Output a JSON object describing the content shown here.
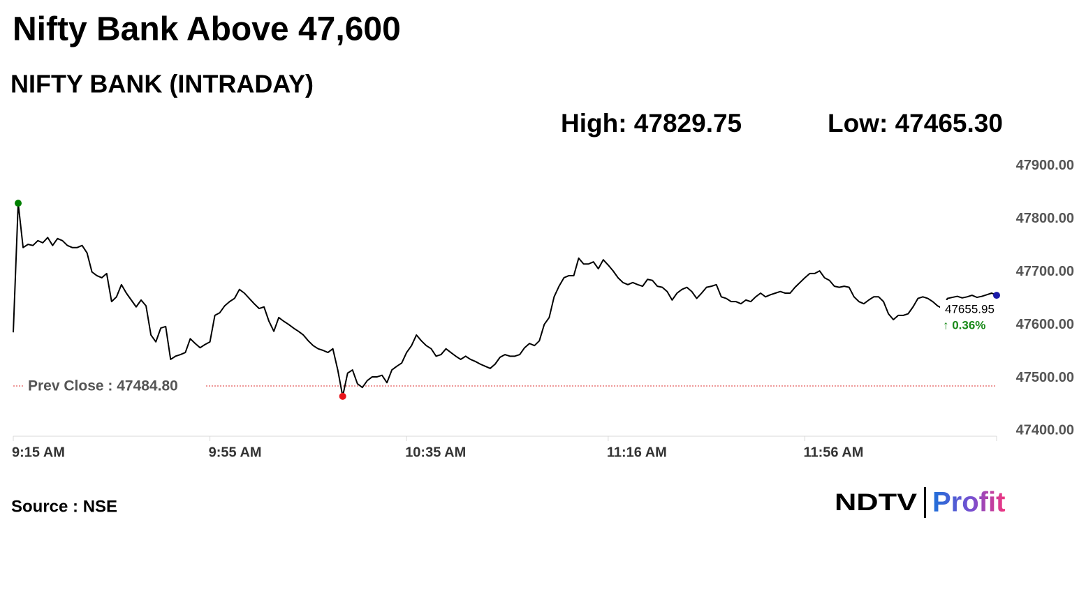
{
  "chart_data": {
    "type": "line",
    "title": "Nifty Bank Above 47,600",
    "subtitle": "NIFTY BANK (INTRADAY)",
    "high": {
      "value": 47829.75,
      "label": "High: 47829.75"
    },
    "low": {
      "value": 47465.3,
      "label": "Low: 47465.30"
    },
    "prev_close": {
      "value": 47484.8,
      "label": "Prev Close : 47484.80"
    },
    "last_price": 47655.95,
    "change_pct": {
      "value": 0.36,
      "label": "↑ 0.36%"
    },
    "source": "Source : NSE",
    "logo": {
      "brand": "NDTV",
      "product": "Profit"
    },
    "color": "#000000",
    "high_color": "#008000",
    "low_color": "#e8141b",
    "last_color": "#1a1aa8",
    "ylim": [
      47390,
      47930
    ],
    "yticks": [
      {
        "value": 47400,
        "label": "47400.00"
      },
      {
        "value": 47500,
        "label": "47500.00"
      },
      {
        "value": 47600,
        "label": "47600.00"
      },
      {
        "value": 47700,
        "label": "47700.00"
      },
      {
        "value": 47800,
        "label": "47800.00"
      },
      {
        "value": 47900,
        "label": "47900.00"
      }
    ],
    "categories": [
      "9:15 AM",
      null,
      null,
      null,
      null,
      null,
      null,
      null,
      null,
      null,
      null,
      null,
      null,
      null,
      null,
      null,
      null,
      null,
      null,
      null,
      null,
      null,
      null,
      null,
      null,
      null,
      null,
      null,
      null,
      null,
      null,
      null,
      null,
      null,
      null,
      null,
      null,
      null,
      null,
      null,
      "9:55 AM",
      null,
      null,
      null,
      null,
      null,
      null,
      null,
      null,
      null,
      null,
      null,
      null,
      null,
      null,
      null,
      null,
      null,
      null,
      null,
      null,
      null,
      null,
      null,
      null,
      null,
      null,
      null,
      null,
      null,
      null,
      null,
      null,
      null,
      null,
      null,
      null,
      null,
      null,
      null,
      "10:35 AM",
      null,
      null,
      null,
      null,
      null,
      null,
      null,
      null,
      null,
      null,
      null,
      null,
      null,
      null,
      null,
      null,
      null,
      null,
      null,
      null,
      null,
      null,
      null,
      null,
      null,
      null,
      null,
      null,
      null,
      null,
      null,
      null,
      null,
      null,
      null,
      null,
      null,
      null,
      null,
      null,
      "11:16 AM",
      null,
      null,
      null,
      null,
      null,
      null,
      null,
      null,
      null,
      null,
      null,
      null,
      null,
      null,
      null,
      null,
      null,
      null,
      null,
      null,
      null,
      null,
      null,
      null,
      null,
      null,
      null,
      null,
      null,
      null,
      null,
      null,
      null,
      null,
      null,
      null,
      null,
      null,
      null,
      "11:56 AM",
      null,
      null,
      null,
      null,
      null,
      null,
      null,
      null,
      null,
      null,
      null,
      null,
      null,
      null,
      null,
      null,
      null,
      null,
      null,
      null,
      null,
      null,
      null,
      null,
      null,
      null,
      null,
      null,
      null,
      null,
      null,
      null,
      null,
      null,
      null,
      null,
      null,
      null,
      null
    ],
    "values": [
      47586,
      47829.75,
      47746,
      47752,
      47750,
      47759,
      47755,
      47765,
      47750,
      47763,
      47759,
      47750,
      47746,
      47746,
      47750,
      47736,
      47700,
      47693,
      47689,
      47697,
      47644,
      47653,
      47676,
      47660,
      47647,
      47634,
      47647,
      47636,
      47581,
      47568,
      47594,
      47597,
      47535,
      47541,
      47544,
      47548,
      47574,
      47565,
      47557,
      47563,
      47568,
      47618,
      47623,
      47636,
      47644,
      47650,
      47667,
      47660,
      47650,
      47640,
      47631,
      47634,
      47607,
      47588,
      47614,
      47607,
      47601,
      47594,
      47588,
      47581,
      47570,
      47561,
      47555,
      47552,
      47548,
      47555,
      47515,
      47465.3,
      47509,
      47515,
      47489,
      47482,
      47495,
      47502,
      47502,
      47505,
      47491,
      47515,
      47522,
      47528,
      47548,
      47561,
      47581,
      47570,
      47561,
      47555,
      47541,
      47544,
      47555,
      47548,
      47541,
      47535,
      47541,
      47535,
      47531,
      47526,
      47522,
      47518,
      47526,
      47539,
      47544,
      47541,
      47541,
      47544,
      47557,
      47565,
      47561,
      47570,
      47601,
      47614,
      47653,
      47673,
      47689,
      47693,
      47693,
      47726,
      47715,
      47715,
      47719,
      47706,
      47723,
      47713,
      47702,
      47689,
      47680,
      47676,
      47680,
      47676,
      47673,
      47686,
      47684,
      47673,
      47671,
      47663,
      47647,
      47660,
      47667,
      47671,
      47663,
      47650,
      47660,
      47671,
      47673,
      47676,
      47653,
      47650,
      47644,
      47644,
      47640,
      47647,
      47644,
      47653,
      47660,
      47653,
      47657,
      47660,
      47663,
      47660,
      47660,
      47671,
      47680,
      47689,
      47697,
      47697,
      47702,
      47689,
      47684,
      47673,
      47671,
      47673,
      47671,
      47653,
      47644,
      47640,
      47647,
      47653,
      47653,
      47644,
      47621,
      47610,
      47618,
      47618,
      47621,
      47634,
      47650,
      47653,
      47650,
      47644,
      47636,
      47631,
      47650,
      47652,
      47654,
      47651,
      47653,
      47656,
      47652,
      47654,
      47657,
      47660,
      47655.95
    ]
  }
}
